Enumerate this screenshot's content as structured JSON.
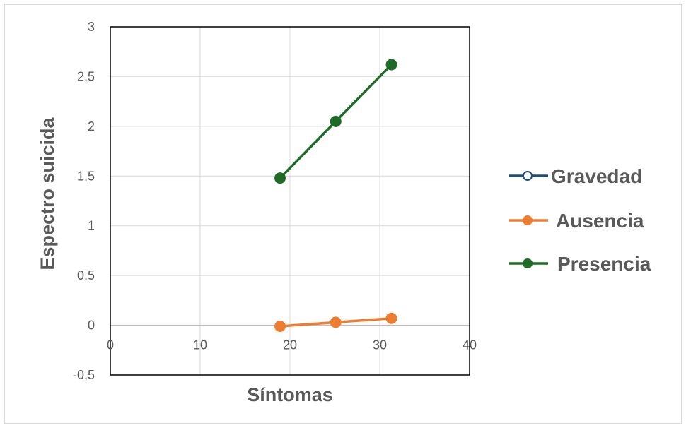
{
  "chart_data": {
    "type": "line",
    "title": "",
    "xlabel": "Síntomas",
    "ylabel": "Espectro suicida",
    "xlim": [
      0,
      40
    ],
    "ylim": [
      -0.5,
      3
    ],
    "x_ticks": [
      0,
      10,
      20,
      30,
      40
    ],
    "x_tick_labels": [
      "0",
      "10",
      "20",
      "30",
      "40"
    ],
    "y_ticks": [
      -0.5,
      0,
      0.5,
      1,
      1.5,
      2,
      2.5,
      3
    ],
    "y_tick_labels": [
      "-0,5",
      "0",
      "0,5",
      "1",
      "1,5",
      "2",
      "2,5",
      "3"
    ],
    "grid": true,
    "legend_position": "right",
    "series": [
      {
        "name": "Gravedad",
        "color": "#1f4e79",
        "marker": "open-circle",
        "x": [],
        "y": []
      },
      {
        "name": "Ausencia",
        "color": "#ed7d31",
        "marker": "filled-circle",
        "x": [
          18.9,
          25.1,
          31.3
        ],
        "y": [
          -0.01,
          0.03,
          0.07
        ]
      },
      {
        "name": "Presencia",
        "color": "#1e6b25",
        "marker": "filled-circle",
        "x": [
          18.9,
          25.1,
          31.3
        ],
        "y": [
          1.48,
          2.05,
          2.62
        ]
      }
    ]
  }
}
